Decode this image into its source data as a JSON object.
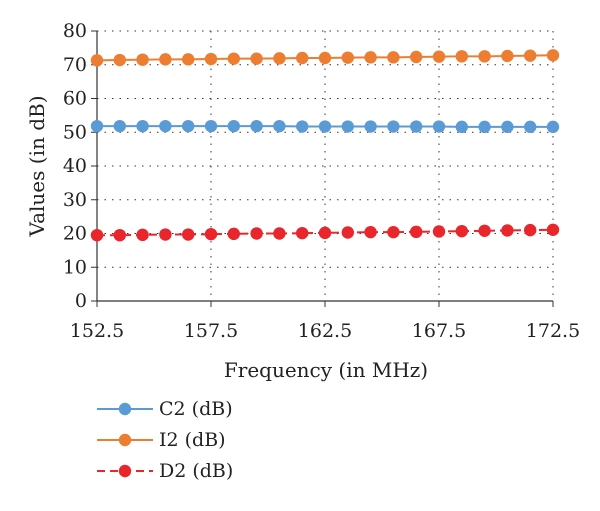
{
  "chart_data": {
    "type": "line",
    "title": "",
    "xlabel": "Frequency (in MHz)",
    "ylabel": "Values (in dB)",
    "xlim": [
      152.5,
      172.5
    ],
    "ylim": [
      0,
      80
    ],
    "x_ticks": [
      "152.5",
      "157.5",
      "162.5",
      "167.5",
      "172.5"
    ],
    "y_ticks": [
      "0",
      "10",
      "20",
      "30",
      "40",
      "50",
      "60",
      "70",
      "80"
    ],
    "grid": "dotted",
    "legend_position": "bottom-left",
    "x": [
      152.5,
      153.5,
      154.5,
      155.5,
      156.5,
      157.5,
      158.5,
      159.5,
      160.5,
      161.5,
      162.5,
      163.5,
      164.5,
      165.5,
      166.5,
      167.5,
      168.5,
      169.5,
      170.5,
      171.5,
      172.5
    ],
    "series": [
      {
        "name": "C2 (dB)",
        "color": "#5b9bd5",
        "line_style": "solid",
        "values": [
          51.8,
          51.8,
          51.8,
          51.8,
          51.8,
          51.8,
          51.8,
          51.8,
          51.8,
          51.7,
          51.7,
          51.7,
          51.7,
          51.7,
          51.7,
          51.7,
          51.6,
          51.6,
          51.6,
          51.6,
          51.6
        ]
      },
      {
        "name": "I2 (dB)",
        "color": "#ed7d31",
        "line_style": "solid",
        "values": [
          71.3,
          71.4,
          71.5,
          71.6,
          71.6,
          71.7,
          71.8,
          71.8,
          71.9,
          72.0,
          72.0,
          72.1,
          72.2,
          72.2,
          72.3,
          72.4,
          72.5,
          72.5,
          72.6,
          72.7,
          72.8
        ]
      },
      {
        "name": "D2 (dB)",
        "color": "#e8262b",
        "line_style": "dashed",
        "values": [
          19.5,
          19.5,
          19.6,
          19.7,
          19.7,
          19.8,
          19.9,
          20.0,
          20.0,
          20.1,
          20.2,
          20.3,
          20.4,
          20.4,
          20.5,
          20.6,
          20.7,
          20.8,
          20.9,
          21.0,
          21.1
        ]
      }
    ]
  }
}
